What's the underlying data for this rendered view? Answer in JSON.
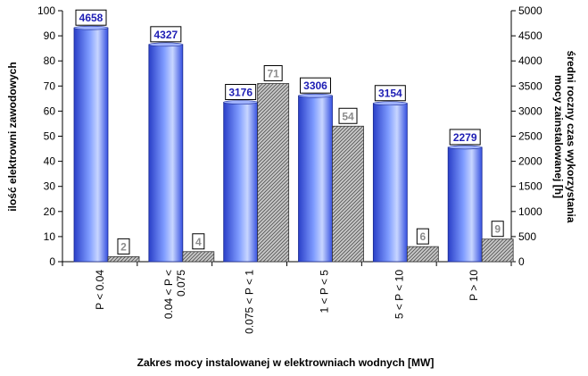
{
  "chart_data": {
    "type": "bar",
    "title": "",
    "categories": [
      "P < 0.04",
      "0.04 < P < 0.075",
      "0.075 < P < 1",
      "1 < P < 5",
      "5 < P < 10",
      "P > 10"
    ],
    "category_lines": [
      [
        "P < 0.04"
      ],
      [
        "0.04 < P <",
        "0.075"
      ],
      [
        "0.075 < P < 1"
      ],
      [
        "1 < P < 5"
      ],
      [
        "5 < P < 10"
      ],
      [
        "P > 10"
      ]
    ],
    "series": [
      {
        "name": "średni roczny czas wykorzystania mocy zainstalowanej [h]",
        "axis": "right",
        "values": [
          4658,
          4327,
          3176,
          3306,
          3154,
          2279
        ],
        "color": "#3d5ef0"
      },
      {
        "name": "ilość elektrowni zawodowych",
        "axis": "left",
        "values": [
          2,
          4,
          71,
          54,
          6,
          9
        ],
        "color": "#a6a6a6"
      }
    ],
    "xlabel": "Zakres mocy instalowanej w elektrowniach wodnych [MW]",
    "ylabel_left": "ilość elektrowni zawodowych",
    "ylabel_right_lines": [
      "średni roczny czas wykorzystania",
      "mocy zainstalowanej [h]"
    ],
    "ylim_left": [
      0,
      100
    ],
    "ylim_right": [
      0,
      5000
    ],
    "yticks_left": [
      0,
      10,
      20,
      30,
      40,
      50,
      60,
      70,
      80,
      90,
      100
    ],
    "yticks_right": [
      0,
      500,
      1000,
      1500,
      2000,
      2500,
      3000,
      3500,
      4000,
      4500,
      5000
    ],
    "grid": false,
    "legend": "none"
  }
}
